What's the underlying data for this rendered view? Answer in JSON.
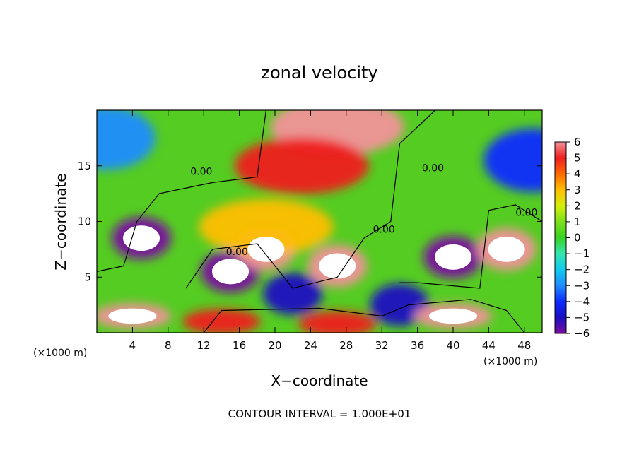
{
  "chart_data": {
    "type": "heatmap",
    "title": "zonal velocity",
    "xlabel": "X−coordinate",
    "ylabel": "Z−coordinate",
    "x_unit_left": "(×1000 m)",
    "x_unit_right": "(×1000 m)",
    "xlim": [
      0,
      50
    ],
    "ylim": [
      0,
      20
    ],
    "x_ticks": [
      4,
      8,
      12,
      16,
      20,
      24,
      28,
      32,
      36,
      40,
      44,
      48
    ],
    "y_ticks": [
      5,
      10,
      15
    ],
    "colorbar_ticks": [
      "6",
      "5",
      "4",
      "3",
      "2",
      "1",
      "0",
      "−1",
      "−2",
      "−3",
      "−4",
      "−5",
      "−6"
    ],
    "colorbar_range": [
      -6,
      6
    ],
    "contour_label": "0.00",
    "note": "CONTOUR INTERVAL = 1.000E+01",
    "features": [
      {
        "name": "positive core upper center",
        "x": 27,
        "z": 18.5,
        "value": 6
      },
      {
        "name": "positive band",
        "x": 23,
        "z": 15,
        "value": 5
      },
      {
        "name": "negative cell",
        "x": 5,
        "z": 8.5,
        "value": -6
      },
      {
        "name": "negative cell",
        "x": 15,
        "z": 5.5,
        "value": -6
      },
      {
        "name": "negative cell",
        "x": 40,
        "z": 6.8,
        "value": -6
      },
      {
        "name": "negative cell",
        "x": 22,
        "z": 3.5,
        "value": -5
      },
      {
        "name": "negative cell",
        "x": 34,
        "z": 2.5,
        "value": -5
      },
      {
        "name": "negative upper right",
        "x": 49,
        "z": 15.5,
        "value": -4
      },
      {
        "name": "negative upper left",
        "x": 1,
        "z": 17.5,
        "value": -3
      },
      {
        "name": "positive cell",
        "x": 46,
        "z": 7.5,
        "value": 6
      },
      {
        "name": "positive cell",
        "x": 27,
        "z": 6,
        "value": 6
      },
      {
        "name": "positive cell",
        "x": 19,
        "z": 7.5,
        "value": 6
      },
      {
        "name": "positive bottom left",
        "x": 4,
        "z": 1.5,
        "value": 6
      },
      {
        "name": "positive bottom",
        "x": 40,
        "z": 1.5,
        "value": 6
      },
      {
        "name": "positive bottom",
        "x": 14,
        "z": 1,
        "value": 5
      },
      {
        "name": "positive bottom",
        "x": 27,
        "z": 0.8,
        "value": 5
      },
      {
        "name": "positive band",
        "x": 19,
        "z": 9.5,
        "value": 3
      }
    ]
  }
}
